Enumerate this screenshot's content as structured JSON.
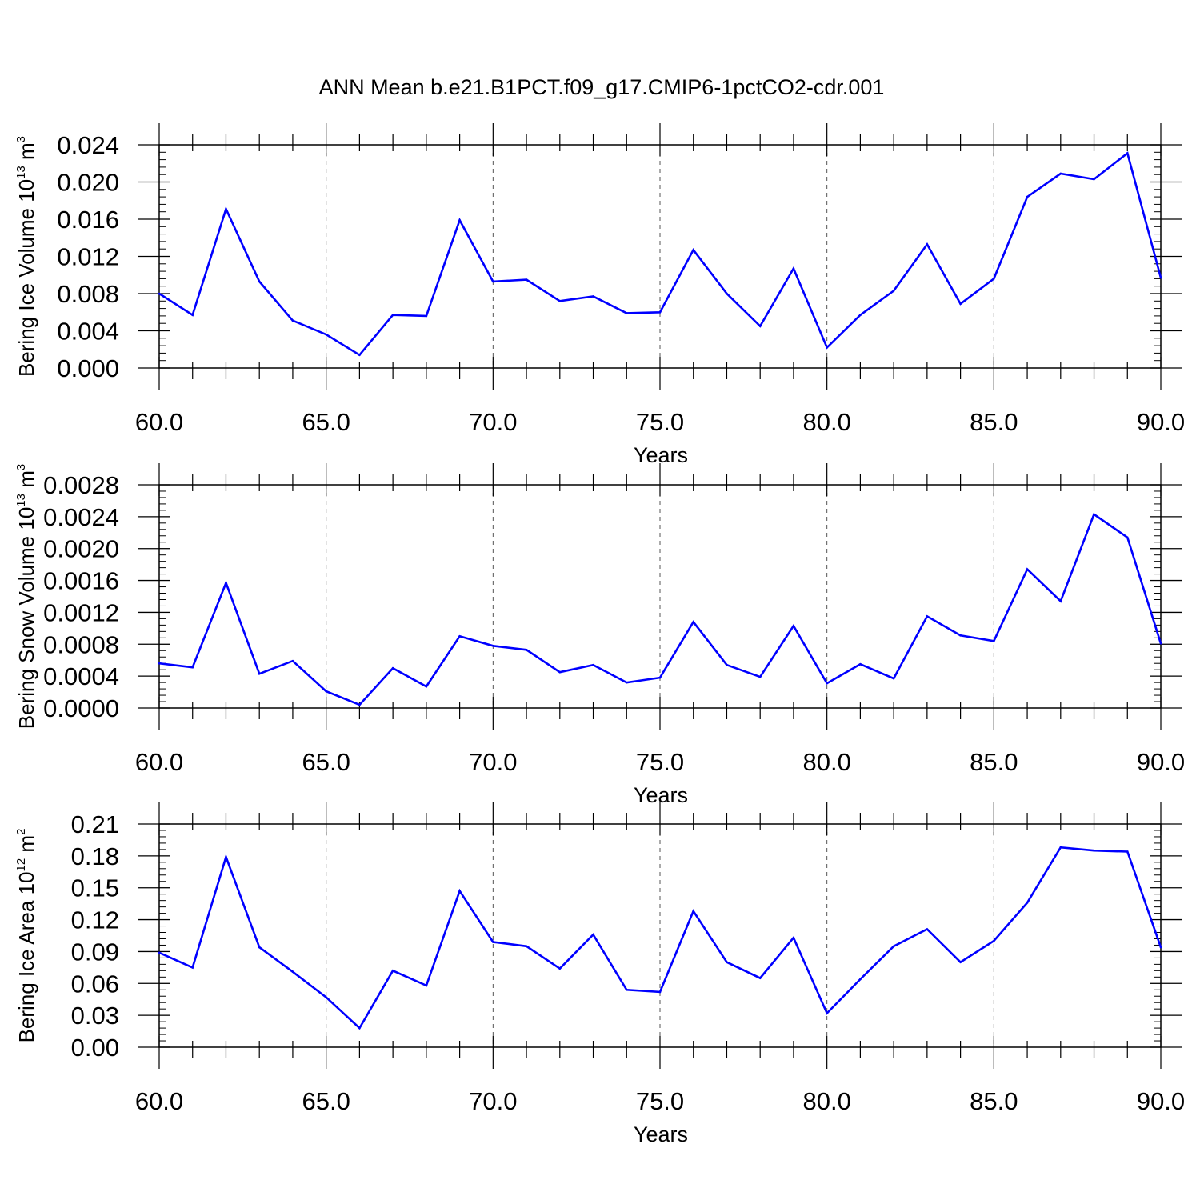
{
  "title": "ANN Mean b.e21.B1PCT.f09_g17.CMIP6-1pctCO2-cdr.001",
  "colors": {
    "line": "#0000ff",
    "axis": "#000000",
    "grid": "#555555"
  },
  "chart_data": [
    {
      "type": "line",
      "ylabel_main": "Bering Ice Volume 10",
      "ylabel_exp": "13",
      "ylabel_unit": " m",
      "ylabel_unit_exp": "3",
      "xlabel": "Years",
      "xlim": [
        60,
        90
      ],
      "ylim": [
        0,
        0.024
      ],
      "x_ticks": [
        "60.0",
        "65.0",
        "70.0",
        "75.0",
        "80.0",
        "85.0",
        "90.0"
      ],
      "y_ticks": [
        "0.000",
        "0.004",
        "0.008",
        "0.012",
        "0.016",
        "0.020",
        "0.024"
      ],
      "x": [
        60,
        61,
        62,
        63,
        64,
        65,
        66,
        67,
        68,
        69,
        70,
        71,
        72,
        73,
        74,
        75,
        76,
        77,
        78,
        79,
        80,
        81,
        82,
        83,
        84,
        85,
        86,
        87,
        88,
        89,
        90
      ],
      "values": [
        0.008,
        0.0057,
        0.0171,
        0.0093,
        0.0051,
        0.0036,
        0.0014,
        0.0057,
        0.0056,
        0.0159,
        0.0093,
        0.0095,
        0.0072,
        0.0077,
        0.0059,
        0.006,
        0.0127,
        0.008,
        0.0045,
        0.0107,
        0.0022,
        0.0057,
        0.0083,
        0.0133,
        0.0069,
        0.0096,
        0.0184,
        0.0209,
        0.0203,
        0.0231,
        0.0097
      ]
    },
    {
      "type": "line",
      "ylabel_main": "Bering Snow Volume 10",
      "ylabel_exp": "13",
      "ylabel_unit": " m",
      "ylabel_unit_exp": "3",
      "xlabel": "Years",
      "xlim": [
        60,
        90
      ],
      "ylim": [
        0,
        0.0028
      ],
      "x_ticks": [
        "60.0",
        "65.0",
        "70.0",
        "75.0",
        "80.0",
        "85.0",
        "90.0"
      ],
      "y_ticks": [
        "0.0000",
        "0.0004",
        "0.0008",
        "0.0012",
        "0.0016",
        "0.0020",
        "0.0024",
        "0.0028"
      ],
      "x": [
        60,
        61,
        62,
        63,
        64,
        65,
        66,
        67,
        68,
        69,
        70,
        71,
        72,
        73,
        74,
        75,
        76,
        77,
        78,
        79,
        80,
        81,
        82,
        83,
        84,
        85,
        86,
        87,
        88,
        89,
        90
      ],
      "values": [
        0.00056,
        0.00051,
        0.00157,
        0.00043,
        0.00059,
        0.00021,
        4e-05,
        0.0005,
        0.00027,
        0.0009,
        0.00078,
        0.00073,
        0.00045,
        0.00054,
        0.00032,
        0.00038,
        0.00108,
        0.00054,
        0.00039,
        0.00103,
        0.00031,
        0.00055,
        0.00037,
        0.00115,
        0.00091,
        0.00084,
        0.00174,
        0.00134,
        0.00243,
        0.00214,
        0.00081
      ]
    },
    {
      "type": "line",
      "ylabel_main": "Bering Ice Area 10",
      "ylabel_exp": "12",
      "ylabel_unit": " m",
      "ylabel_unit_exp": "2",
      "xlabel": "Years",
      "xlim": [
        60,
        90
      ],
      "ylim": [
        0,
        0.21
      ],
      "x_ticks": [
        "60.0",
        "65.0",
        "70.0",
        "75.0",
        "80.0",
        "85.0",
        "90.0"
      ],
      "y_ticks": [
        "0.00",
        "0.03",
        "0.06",
        "0.09",
        "0.12",
        "0.15",
        "0.18",
        "0.21"
      ],
      "x": [
        60,
        61,
        62,
        63,
        64,
        65,
        66,
        67,
        68,
        69,
        70,
        71,
        72,
        73,
        74,
        75,
        76,
        77,
        78,
        79,
        80,
        81,
        82,
        83,
        84,
        85,
        86,
        87,
        88,
        89,
        90
      ],
      "values": [
        0.089,
        0.075,
        0.179,
        0.094,
        0.071,
        0.047,
        0.018,
        0.072,
        0.058,
        0.147,
        0.099,
        0.095,
        0.074,
        0.106,
        0.054,
        0.052,
        0.128,
        0.08,
        0.065,
        0.103,
        0.032,
        0.064,
        0.095,
        0.111,
        0.08,
        0.1,
        0.136,
        0.188,
        0.185,
        0.184,
        0.094
      ]
    }
  ]
}
